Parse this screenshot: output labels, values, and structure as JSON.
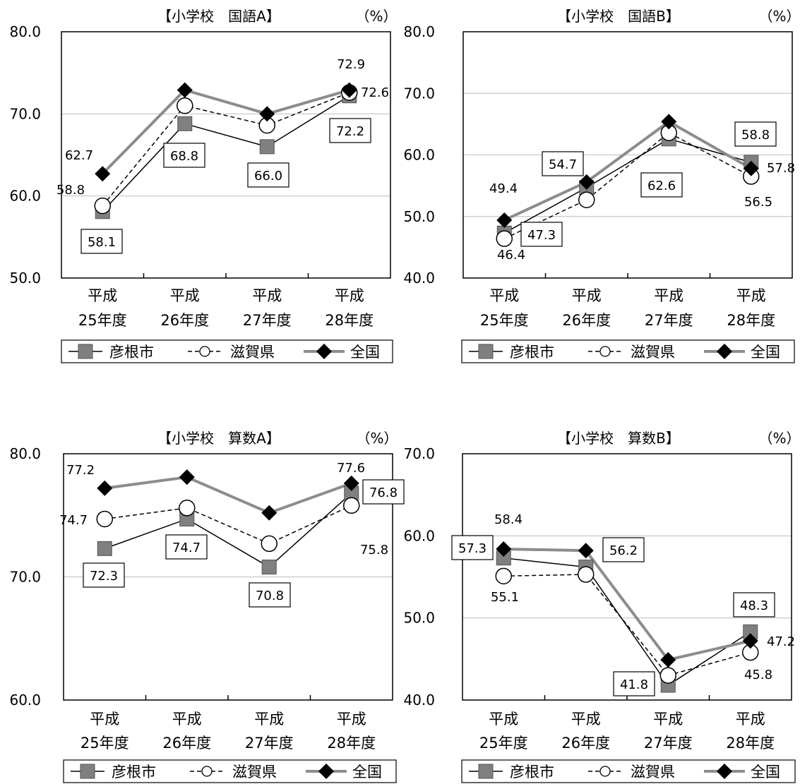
{
  "colors": {
    "hikone": "#808080",
    "shiga": "#ffffff",
    "national": "#000000",
    "national_line": "#8c8c8c",
    "grid": "#d0d0d0"
  },
  "legend": {
    "hikone": "彦根市",
    "shiga": "滋賀県",
    "national": "全国"
  },
  "chart_data": [
    {
      "type": "line",
      "title": "【小学校　国語A】",
      "unit": "（%）",
      "categories": [
        [
          "平成",
          "25年度"
        ],
        [
          "平成",
          "26年度"
        ],
        [
          "平成",
          "27年度"
        ],
        [
          "平成",
          "28年度"
        ]
      ],
      "ylim": [
        50,
        80
      ],
      "yticks": [
        "50.0",
        "60.0",
        "70.0",
        "80.0"
      ],
      "series": [
        {
          "name": "彦根市",
          "values": [
            58.1,
            68.8,
            66.0,
            72.2
          ],
          "labels": [
            "58.1",
            "68.8",
            "66.0",
            "72.2"
          ]
        },
        {
          "name": "滋賀県",
          "values": [
            58.8,
            71.0,
            68.6,
            72.6
          ],
          "labels": [
            "58.8",
            "",
            "",
            "72.6"
          ]
        },
        {
          "name": "全国",
          "values": [
            62.7,
            72.9,
            70.0,
            72.9
          ],
          "labels": [
            "62.7",
            "",
            "",
            "72.9"
          ]
        }
      ]
    },
    {
      "type": "line",
      "title": "【小学校　国語B】",
      "unit": "（%）",
      "categories": [
        [
          "平成",
          "25年度"
        ],
        [
          "平成",
          "26年度"
        ],
        [
          "平成",
          "27年度"
        ],
        [
          "平成",
          "28年度"
        ]
      ],
      "ylim": [
        40,
        80
      ],
      "yticks": [
        "40.0",
        "50.0",
        "60.0",
        "70.0",
        "80.0"
      ],
      "series": [
        {
          "name": "彦根市",
          "values": [
            47.3,
            54.7,
            62.6,
            58.8
          ],
          "labels": [
            "47.3",
            "54.7",
            "62.6",
            "58.8"
          ]
        },
        {
          "name": "滋賀県",
          "values": [
            46.4,
            52.7,
            63.6,
            56.5
          ],
          "labels": [
            "46.4",
            "",
            "",
            "56.5"
          ]
        },
        {
          "name": "全国",
          "values": [
            49.4,
            55.6,
            65.4,
            57.8
          ],
          "labels": [
            "49.4",
            "",
            "",
            "57.8"
          ]
        }
      ]
    },
    {
      "type": "line",
      "title": "【小学校　算数A】",
      "unit": "（%）",
      "categories": [
        [
          "平成",
          "25年度"
        ],
        [
          "平成",
          "26年度"
        ],
        [
          "平成",
          "27年度"
        ],
        [
          "平成",
          "28年度"
        ]
      ],
      "ylim": [
        60,
        80
      ],
      "yticks": [
        "60.0",
        "70.0",
        "80.0"
      ],
      "series": [
        {
          "name": "彦根市",
          "values": [
            72.3,
            74.7,
            70.8,
            76.8
          ],
          "labels": [
            "72.3",
            "74.7",
            "70.8",
            "76.8"
          ]
        },
        {
          "name": "滋賀県",
          "values": [
            74.7,
            75.6,
            72.7,
            75.8
          ],
          "labels": [
            "74.7",
            "",
            "",
            "75.8"
          ]
        },
        {
          "name": "全国",
          "values": [
            77.2,
            78.1,
            75.2,
            77.6
          ],
          "labels": [
            "77.2",
            "",
            "",
            "77.6"
          ]
        }
      ]
    },
    {
      "type": "line",
      "title": "【小学校　算数B】",
      "unit": "（%）",
      "categories": [
        [
          "平成",
          "25年度"
        ],
        [
          "平成",
          "26年度"
        ],
        [
          "平成",
          "27年度"
        ],
        [
          "平成",
          "28年度"
        ]
      ],
      "ylim": [
        40,
        70
      ],
      "yticks": [
        "40.0",
        "50.0",
        "60.0",
        "70.0"
      ],
      "series": [
        {
          "name": "彦根市",
          "values": [
            57.3,
            56.2,
            41.8,
            48.3
          ],
          "labels": [
            "57.3",
            "56.2",
            "41.8",
            "48.3"
          ]
        },
        {
          "name": "滋賀県",
          "values": [
            55.1,
            55.3,
            43.0,
            45.8
          ],
          "labels": [
            "55.1",
            "",
            "",
            "45.8"
          ]
        },
        {
          "name": "全国",
          "values": [
            58.4,
            58.2,
            44.9,
            47.2
          ],
          "labels": [
            "58.4",
            "",
            "",
            "47.2"
          ]
        }
      ]
    }
  ]
}
